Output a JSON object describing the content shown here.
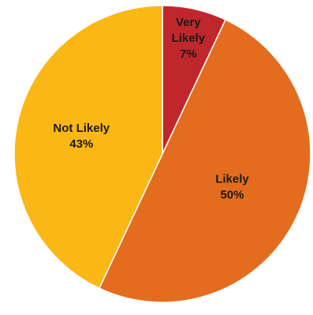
{
  "chart_data": {
    "type": "pie",
    "slices": [
      {
        "label": "Very Likely",
        "value": 7,
        "value_label": "7%",
        "color": "#C0272D",
        "label_color": "#1a1a1a"
      },
      {
        "label": "Likely",
        "value": 50,
        "value_label": "50%",
        "color": "#E46C1F",
        "label_color": "#1a1a1a"
      },
      {
        "label": "Not Likely",
        "value": 43,
        "value_label": "43%",
        "color": "#FAB715",
        "label_color": "#1a1a1a"
      }
    ],
    "start_angle": "12 o'clock",
    "direction": "clockwise",
    "slice_border_color": "#ffffff",
    "legend": "none"
  }
}
